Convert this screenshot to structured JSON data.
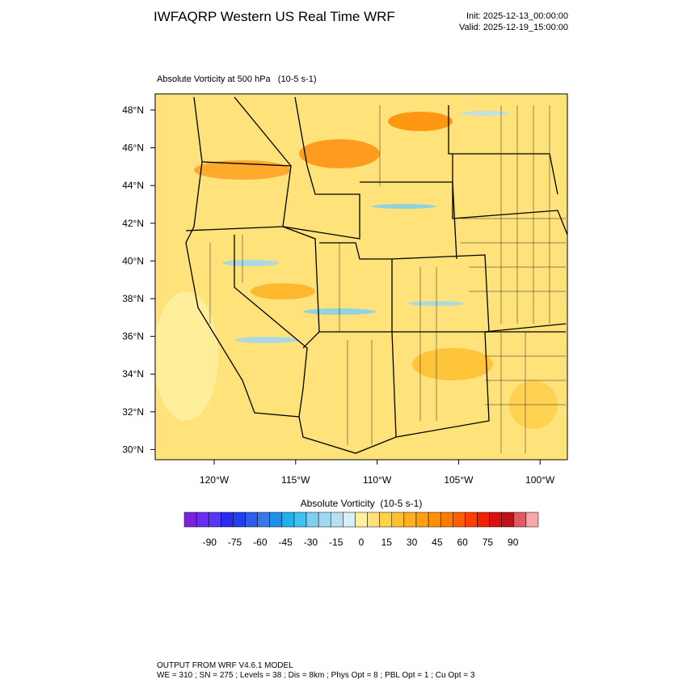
{
  "header": {
    "title": "IWFAQRP Western US Real Time WRF",
    "init": "Init: 2025-12-13_00:00:00",
    "valid": "Valid: 2025-12-19_15:00:00"
  },
  "map": {
    "subtitle": "Absolute Vorticity at 500 hPa   (10-5 s-1)",
    "lat_labels": [
      "48°N",
      "46°N",
      "44°N",
      "42°N",
      "40°N",
      "38°N",
      "36°N",
      "34°N",
      "32°N",
      "30°N"
    ],
    "lon_labels": [
      "120°W",
      "115°W",
      "110°W",
      "105°W",
      "100°W"
    ]
  },
  "colorbar": {
    "title": "Absolute Vorticity  (10-5 s-1)",
    "range": [
      -105,
      105
    ],
    "ticks": [
      -90,
      -75,
      -60,
      -45,
      -30,
      -15,
      0,
      15,
      30,
      45,
      60,
      75,
      90
    ],
    "colors": [
      "#7b22e0",
      "#6a2ff0",
      "#5538f0",
      "#2a2af0",
      "#1f3ff0",
      "#2f5ce8",
      "#3a78e8",
      "#1e90e8",
      "#1fb0f0",
      "#40c0f0",
      "#7fd0f0",
      "#9fd8f0",
      "#b8e0f0",
      "#d8eef8",
      "#fff0a0",
      "#ffe07a",
      "#ffd04a",
      "#ffc030",
      "#ffb020",
      "#ffa010",
      "#ff9000",
      "#ff7a00",
      "#ff6000",
      "#ff4000",
      "#f02000",
      "#d81010",
      "#c0101a",
      "#e05a60",
      "#f8a8a8"
    ]
  },
  "footer": {
    "line1": "OUTPUT FROM WRF V4.6.1 MODEL",
    "line2": "WE = 310 ; SN = 275 ; Levels = 38 ; Dis = 8km ; Phys Opt = 8 ; PBL Opt = 1 ; Cu Opt = 3"
  }
}
